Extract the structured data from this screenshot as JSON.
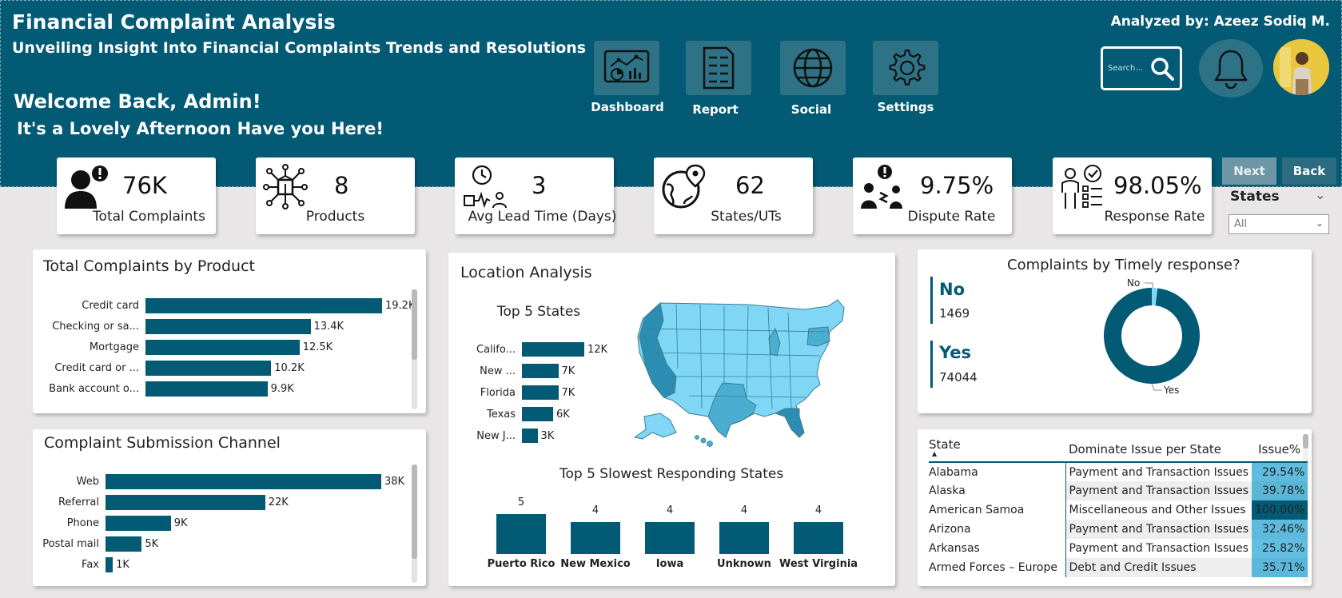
{
  "header": {
    "title": "Financial Complaint Analysis",
    "subtitle": "Unveiling Insight Into Financial Complaints Trends and Resolutions",
    "welcome": "Welcome Back, Admin!",
    "greeting": "It's a Lovely Afternoon Have you Here!",
    "analyst": "Analyzed by: Azeez Sodiq M.",
    "search_placeholder": "Search..."
  },
  "nav": [
    {
      "label": "Dashboard",
      "icon": "dashboard-icon"
    },
    {
      "label": "Report",
      "icon": "report-icon"
    },
    {
      "label": "Social",
      "icon": "globe-icon"
    },
    {
      "label": "Settings",
      "icon": "gear-icon"
    }
  ],
  "kpis": [
    {
      "value": "76K",
      "label": "Total Complaints",
      "icon": "person-alert-icon"
    },
    {
      "value": "8",
      "label": "Products",
      "icon": "network-box-icon"
    },
    {
      "value": "3",
      "label": "Avg Lead Time (Days)",
      "icon": "clock-lead-icon"
    },
    {
      "value": "62",
      "label": "States/UTs",
      "icon": "globe-pin-icon"
    },
    {
      "value": "9.75%",
      "label": "Dispute Rate",
      "icon": "dispute-icon"
    },
    {
      "value": "98.05%",
      "label": "Response Rate",
      "icon": "response-checklist-icon"
    }
  ],
  "buttons": {
    "next": "Next",
    "back": "Back"
  },
  "slicer": {
    "label": "States",
    "selected": "All"
  },
  "colors": {
    "primary": "#035a74",
    "map_light": "#7fd6f5",
    "map_mid": "#4aaed0",
    "map_dark": "#2b8db1"
  },
  "products_chart": {
    "title": "Total Complaints by Product",
    "chart_data": {
      "type": "bar",
      "orientation": "horizontal",
      "categories": [
        "Credit card",
        "Checking or sa...",
        "Mortgage",
        "Credit card or ...",
        "Bank account o..."
      ],
      "values": [
        19200,
        13400,
        12500,
        10200,
        9900
      ],
      "labels": [
        "19.2K",
        "13.4K",
        "12.5K",
        "10.2K",
        "9.9K"
      ]
    }
  },
  "channel_chart": {
    "title": "Complaint Submission Channel",
    "chart_data": {
      "type": "bar",
      "orientation": "horizontal",
      "categories": [
        "Web",
        "Referral",
        "Phone",
        "Postal mail",
        "Fax"
      ],
      "values": [
        38000,
        22000,
        9000,
        5000,
        1000
      ],
      "labels": [
        "38K",
        "22K",
        "9K",
        "5K",
        "1K"
      ]
    }
  },
  "location": {
    "title": "Location Analysis",
    "top_states": {
      "title": "Top 5 States",
      "chart_data": {
        "type": "bar",
        "orientation": "horizontal",
        "categories": [
          "Califo...",
          "New ...",
          "Florida",
          "Texas",
          "New J..."
        ],
        "values": [
          12000,
          7000,
          7000,
          6000,
          3000
        ],
        "labels": [
          "12K",
          "7K",
          "7K",
          "6K",
          "3K"
        ]
      }
    },
    "slowest": {
      "title": "Top 5 Slowest Responding States",
      "chart_data": {
        "type": "bar",
        "categories": [
          "Puerto Rico",
          "New Mexico",
          "Iowa",
          "Unknown",
          "West Virginia"
        ],
        "values": [
          5,
          4,
          4,
          4,
          4
        ],
        "labels": [
          "5",
          "4",
          "4",
          "4",
          "4"
        ]
      }
    }
  },
  "timely": {
    "title": "Complaints by Timely response?",
    "no_label": "No",
    "no_value": "1469",
    "yes_label": "Yes",
    "yes_value": "74044",
    "chart_data": {
      "type": "pie",
      "donut": true,
      "categories": [
        "No",
        "Yes"
      ],
      "values": [
        1469,
        74044
      ]
    }
  },
  "issues_table": {
    "columns": [
      "State",
      "Dominate Issue per State",
      "Issue%"
    ],
    "rows": [
      {
        "state": "Alabama",
        "issue": "Payment and Transaction Issues",
        "pct": "29.54%",
        "pct_value": 29.54
      },
      {
        "state": "Alaska",
        "issue": "Payment and Transaction Issues",
        "pct": "39.78%",
        "pct_value": 39.78
      },
      {
        "state": "American Samoa",
        "issue": "Miscellaneous and Other Issues",
        "pct": "100.00%",
        "pct_value": 100.0
      },
      {
        "state": "Arizona",
        "issue": "Payment and Transaction Issues",
        "pct": "32.46%",
        "pct_value": 32.46
      },
      {
        "state": "Arkansas",
        "issue": "Payment and Transaction Issues",
        "pct": "25.82%",
        "pct_value": 25.82
      },
      {
        "state": "Armed Forces – Europe",
        "issue": "Debt and Credit Issues",
        "pct": "35.71%",
        "pct_value": 35.71
      }
    ]
  }
}
